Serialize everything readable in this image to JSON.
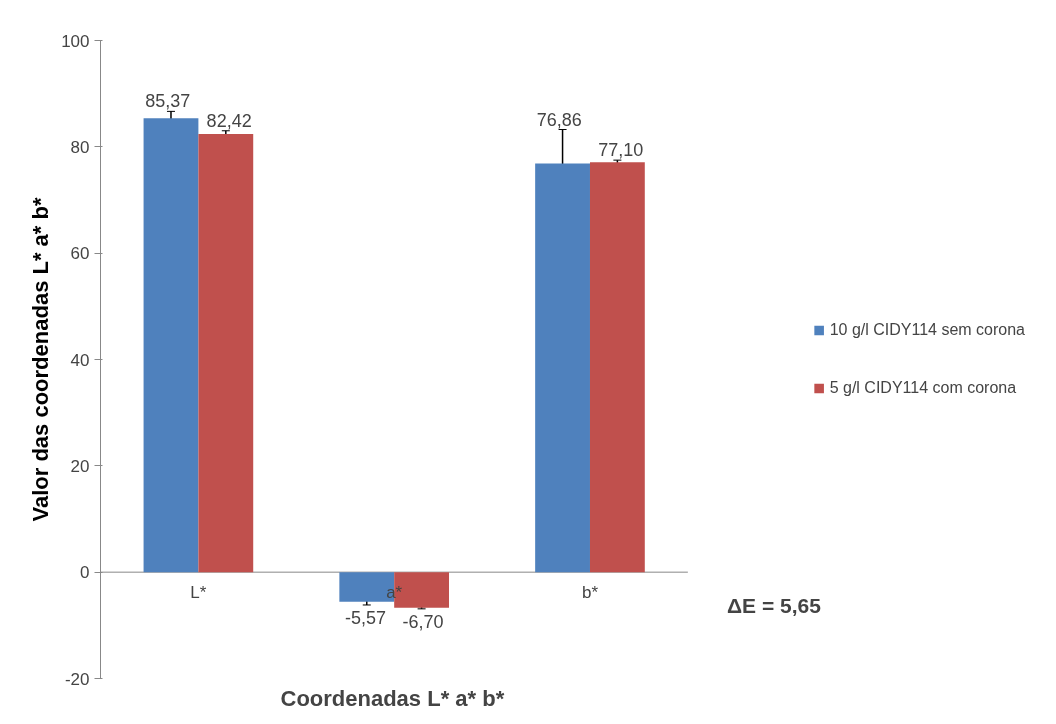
{
  "chart_data": {
    "type": "bar",
    "xlabel": "Coordenadas L* a* b*",
    "ylabel": "Valor das coordenadas L* a* b*",
    "categories": [
      "L*",
      "a*",
      "b*"
    ],
    "series": [
      {
        "name": "10 g/l CIDY114 sem corona",
        "color": "#4f81bd",
        "values": [
          85.37,
          -5.57,
          76.86
        ],
        "errors": [
          1.3,
          0.6,
          6.4
        ],
        "value_labels": [
          "85,37",
          "-5,57",
          "76,86"
        ]
      },
      {
        "name": "5 g/l CIDY114 com corona",
        "color": "#c0504d",
        "values": [
          82.42,
          -6.7,
          77.1
        ],
        "errors": [
          0.6,
          0.2,
          0.4
        ],
        "value_labels": [
          "82,42",
          "-6,70",
          "77,10"
        ]
      }
    ],
    "ylim": [
      -20,
      100
    ],
    "yticks": [
      -20,
      0,
      20,
      40,
      60,
      80,
      100
    ],
    "grid": false,
    "legend": "right",
    "annotations": [
      "ΔE = 5,65"
    ]
  }
}
